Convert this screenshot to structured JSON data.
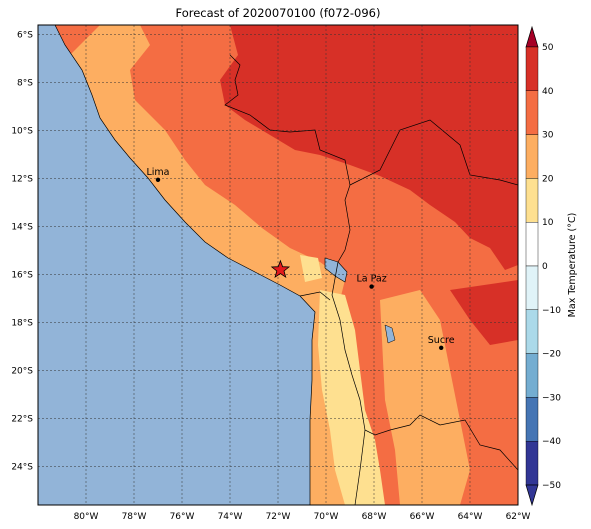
{
  "title": "Forecast of 2020070100 (f072-096)",
  "map": {
    "lat_ticks": [
      "6°S",
      "8°S",
      "10°S",
      "12°S",
      "14°S",
      "16°S",
      "18°S",
      "20°S",
      "22°S",
      "24°S"
    ],
    "lon_ticks": [
      "80°W",
      "78°W",
      "76°W",
      "74°W",
      "72°W",
      "70°W",
      "68°W",
      "66°W",
      "64°W",
      "62°W"
    ],
    "cities": [
      {
        "name": "Lima",
        "lon": -77.0,
        "lat": -12.05
      },
      {
        "name": "La Paz",
        "lon": -68.1,
        "lat": -16.5
      },
      {
        "name": "Sucre",
        "lon": -65.2,
        "lat": -19.05
      }
    ],
    "marker": {
      "name": "star-marker",
      "lon": -71.9,
      "lat": -15.8
    }
  },
  "colorbar": {
    "label": "Max Temperature (°C)",
    "ticks": [
      "50",
      "40",
      "30",
      "20",
      "10",
      "0",
      "−10",
      "−20",
      "−30",
      "−40",
      "−50"
    ],
    "colors": [
      "#a50026",
      "#d73027",
      "#f46d43",
      "#fdae61",
      "#fee090",
      "#ffffff",
      "#e0f3f8",
      "#abd9e9",
      "#74add1",
      "#4575b4",
      "#313695"
    ]
  },
  "colors": {
    "ocean": "#92b4d8",
    "lake": "#92b4d8",
    "land_30_40": "#d73027",
    "land_20_30": "#f46d43",
    "land_10_20": "#fdae61",
    "land_0_10": "#fee090"
  }
}
